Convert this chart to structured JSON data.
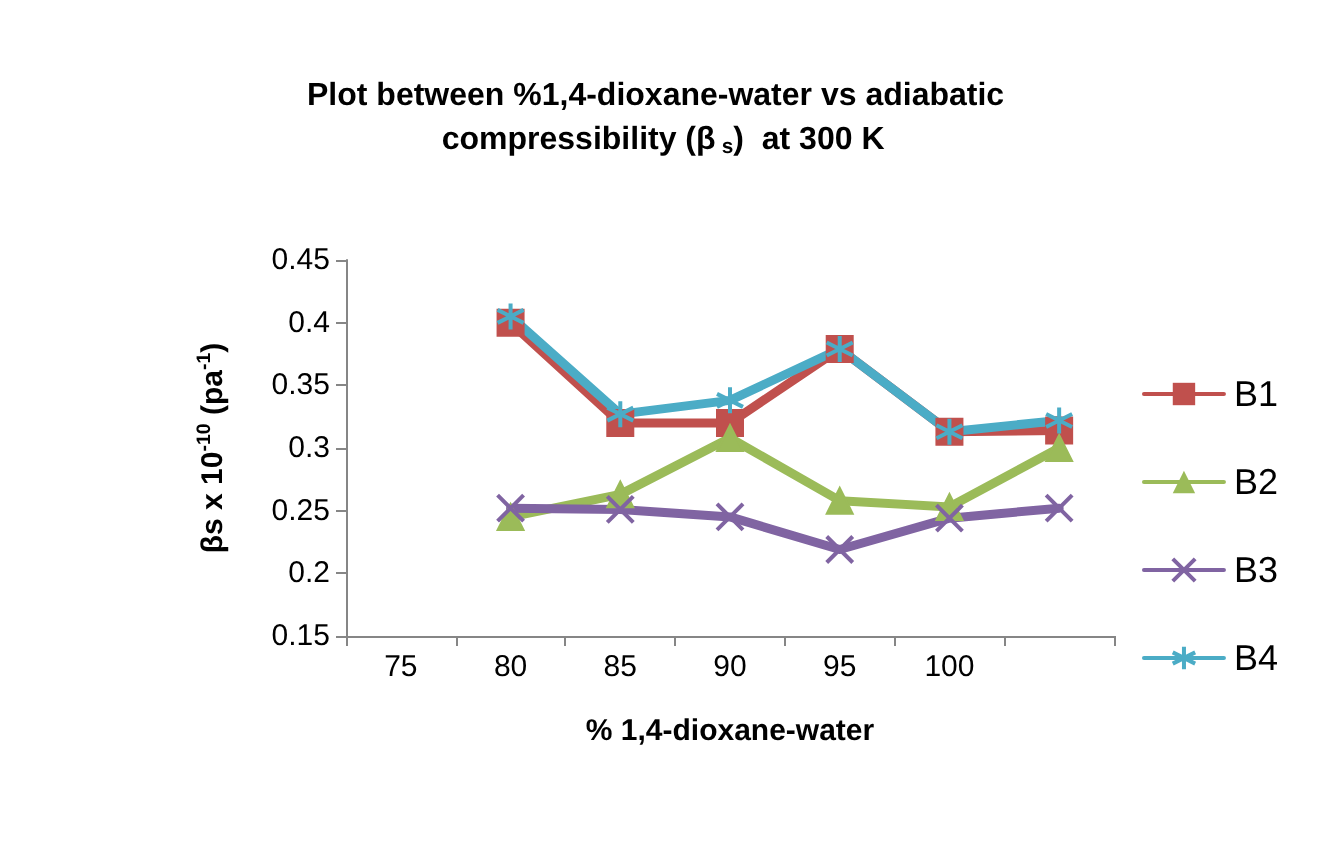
{
  "chart_data": {
    "type": "line",
    "title": "Plot between %1,4-dioxane-water vs adiabatic compressibility (β$_{s}$)  at 300 K",
    "xlabel": "% 1,4-dioxane-water",
    "ylabel": "βs x 10$^{-10}$ (pa$^{-1}$)",
    "categories": [
      "75",
      "80",
      "85",
      "90",
      "95",
      "100",
      null
    ],
    "series": [
      {
        "name": "B1",
        "color": "#c0504d",
        "marker": "square",
        "values": [
          null,
          0.4,
          0.32,
          0.32,
          0.379,
          0.313,
          0.314
        ]
      },
      {
        "name": "B2",
        "color": "#9bbb59",
        "marker": "triangle",
        "values": [
          null,
          0.245,
          0.263,
          0.308,
          0.258,
          0.253,
          0.3
        ]
      },
      {
        "name": "B3",
        "color": "#8064a2",
        "marker": "cross",
        "values": [
          null,
          0.252,
          0.251,
          0.245,
          0.219,
          0.244,
          0.252
        ]
      },
      {
        "name": "B4",
        "color": "#4bacc6",
        "marker": "cross",
        "values": [
          null,
          0.405,
          0.327,
          0.338,
          0.379,
          0.313,
          0.322
        ]
      }
    ],
    "ylim": [
      0.15,
      0.45
    ],
    "yticks": [
      0.15,
      0.2,
      0.25,
      0.3,
      0.35,
      0.4,
      0.45
    ],
    "grid": false,
    "legend": "right"
  }
}
